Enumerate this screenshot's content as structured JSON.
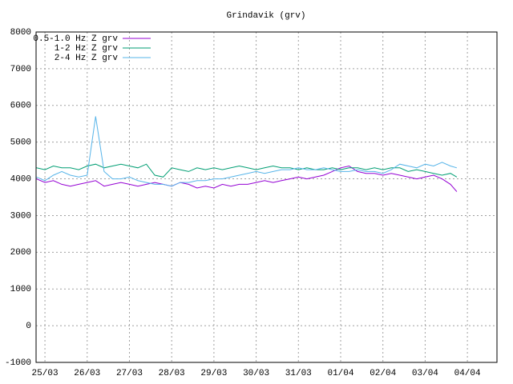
{
  "chart_data": {
    "type": "line",
    "title": "Grindavik (grv)",
    "x": [
      -0.2,
      0,
      0.2,
      0.4,
      0.6,
      0.8,
      1,
      1.2,
      1.4,
      1.6,
      1.8,
      2,
      2.2,
      2.4,
      2.6,
      2.8,
      3,
      3.2,
      3.4,
      3.6,
      3.8,
      4,
      4.2,
      4.4,
      4.6,
      4.8,
      5,
      5.2,
      5.4,
      5.6,
      5.8,
      6,
      6.2,
      6.4,
      6.6,
      6.8,
      7,
      7.2,
      7.4,
      7.6,
      7.8,
      8,
      8.2,
      8.4,
      8.6,
      8.8,
      9,
      9.2,
      9.4,
      9.6,
      9.75
    ],
    "series": [
      {
        "name": "0.5-1.0 Hz Z grv",
        "color": "#9400d3",
        "values": [
          4000,
          3900,
          3950,
          3850,
          3800,
          3850,
          3900,
          3950,
          3800,
          3850,
          3900,
          3850,
          3800,
          3850,
          3900,
          3850,
          3800,
          3900,
          3850,
          3750,
          3800,
          3750,
          3850,
          3800,
          3850,
          3850,
          3900,
          3950,
          3900,
          3950,
          4000,
          4050,
          4000,
          4050,
          4100,
          4200,
          4300,
          4350,
          4200,
          4150,
          4150,
          4100,
          4150,
          4100,
          4050,
          4000,
          4050,
          4100,
          4000,
          3850,
          3650
        ]
      },
      {
        "name": "1-2 Hz Z grv",
        "color": "#009e73",
        "values": [
          4300,
          4250,
          4350,
          4300,
          4300,
          4250,
          4350,
          4400,
          4300,
          4350,
          4400,
          4350,
          4300,
          4400,
          4100,
          4050,
          4300,
          4250,
          4200,
          4300,
          4250,
          4300,
          4250,
          4300,
          4350,
          4300,
          4250,
          4300,
          4350,
          4300,
          4300,
          4250,
          4300,
          4250,
          4250,
          4300,
          4250,
          4300,
          4300,
          4250,
          4300,
          4250,
          4300,
          4300,
          4200,
          4250,
          4200,
          4150,
          4100,
          4150,
          4050
        ]
      },
      {
        "name": "2-4 Hz Z grv",
        "color": "#56b4e9",
        "values": [
          4050,
          3950,
          4100,
          4200,
          4100,
          4050,
          4100,
          5700,
          4200,
          4000,
          4000,
          4050,
          3950,
          3900,
          3850,
          3850,
          3800,
          3900,
          3900,
          3950,
          3950,
          4000,
          4000,
          4050,
          4100,
          4150,
          4200,
          4150,
          4200,
          4250,
          4250,
          4300,
          4250,
          4250,
          4300,
          4250,
          4200,
          4200,
          4250,
          4200,
          4200,
          4150,
          4250,
          4400,
          4350,
          4300,
          4400,
          4350,
          4450,
          4350,
          4300
        ]
      }
    ],
    "xlim": [
      -0.21,
      10.7
    ],
    "xticks": [
      {
        "value": 0,
        "label": "25/03"
      },
      {
        "value": 1,
        "label": "26/03"
      },
      {
        "value": 2,
        "label": "27/03"
      },
      {
        "value": 3,
        "label": "28/03"
      },
      {
        "value": 4,
        "label": "29/03"
      },
      {
        "value": 5,
        "label": "30/03"
      },
      {
        "value": 6,
        "label": "31/03"
      },
      {
        "value": 7,
        "label": "01/04"
      },
      {
        "value": 8,
        "label": "02/04"
      },
      {
        "value": 9,
        "label": "03/04"
      },
      {
        "value": 10,
        "label": "04/04"
      }
    ],
    "ylim": [
      -1000,
      8000
    ],
    "yticks": [
      -1000,
      0,
      1000,
      2000,
      3000,
      4000,
      5000,
      6000,
      7000,
      8000
    ],
    "grid": true,
    "legend": "top-left"
  }
}
